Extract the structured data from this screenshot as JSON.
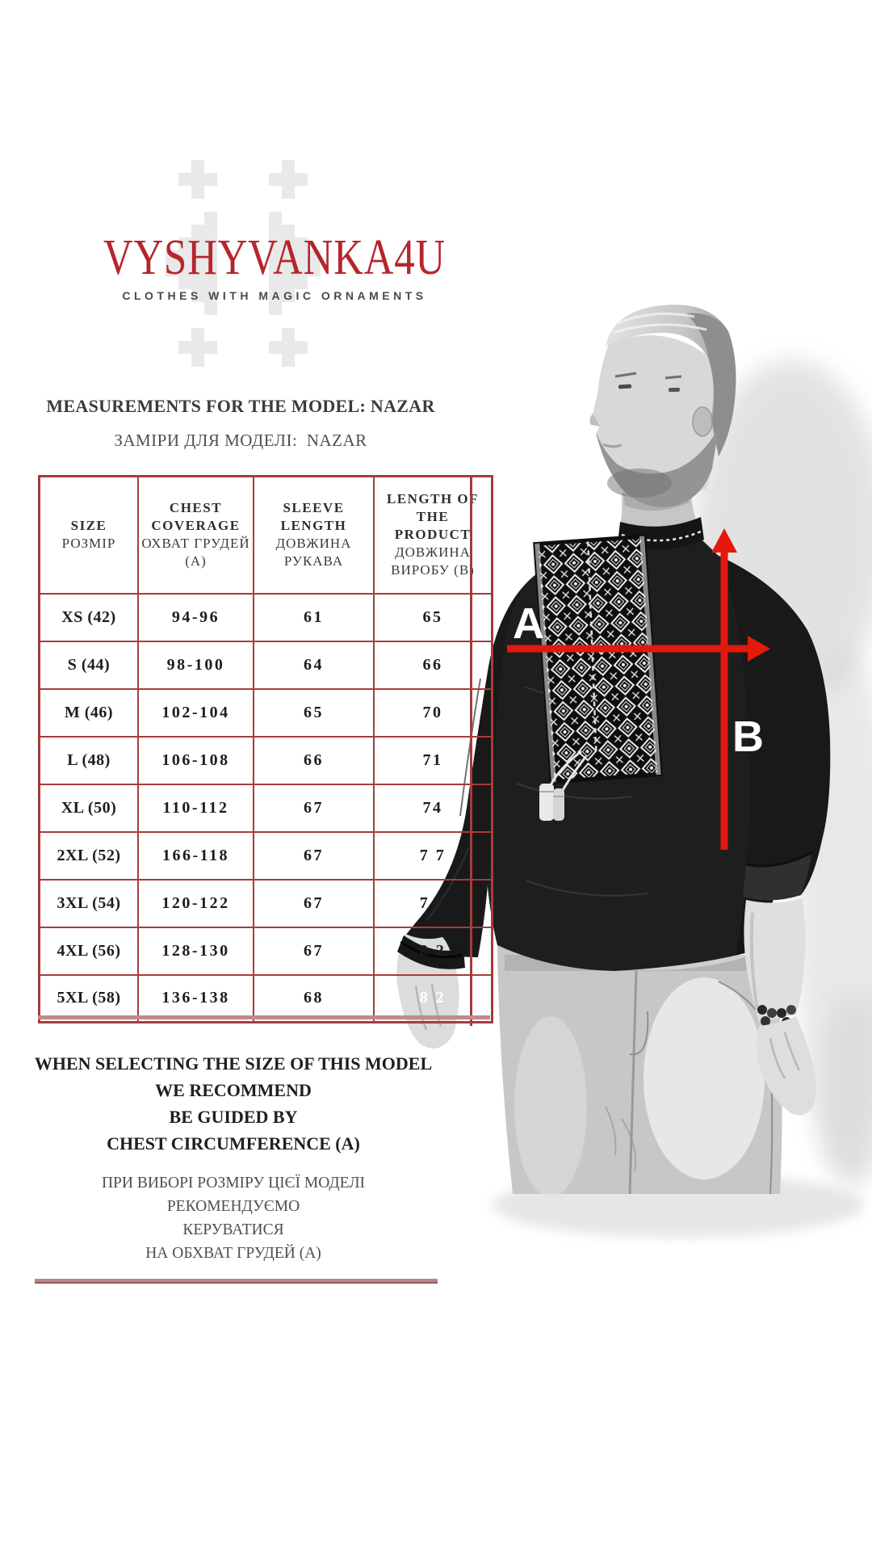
{
  "brand": {
    "logo": "VYSHYVANKA4U",
    "tagline": "CLOTHES WITH MAGIC ORNAMENTS"
  },
  "titles": {
    "en": "MEASUREMENTS FOR THE MODEL: NAZAR",
    "ua": "ЗАМІРИ ДЛЯ МОДЕЛІ:  NAZAR"
  },
  "table": {
    "headers": [
      {
        "en": "SIZE",
        "ua": "РОЗМІР"
      },
      {
        "en": "CHEST COVERAGE",
        "ua": "ОХВАТ ГРУДЕЙ (А)"
      },
      {
        "en": "SLEEVE LENGTH",
        "ua": "ДОВЖИНА РУКАВА"
      },
      {
        "en": "LENGTH OF THE PRODUCT",
        "ua": "ДОВЖИНА ВИРОБУ (В)"
      }
    ],
    "rows": [
      {
        "size": "XS (42)",
        "chest": "94-96",
        "sleeve": "61",
        "length": "65"
      },
      {
        "size": "S (44)",
        "chest": "98-100",
        "sleeve": "64",
        "length": "66"
      },
      {
        "size": "M (46)",
        "chest": "102-104",
        "sleeve": "65",
        "length": "70"
      },
      {
        "size": "L (48)",
        "chest": "106-108",
        "sleeve": "66",
        "length": "71"
      },
      {
        "size": "XL (50)",
        "chest": "110-112",
        "sleeve": "67",
        "length": "74"
      },
      {
        "size": "2XL (52)",
        "chest": "166-118",
        "sleeve": "67",
        "length": "7 7"
      },
      {
        "size": "3XL (54)",
        "chest": "120-122",
        "sleeve": "67",
        "length": "7 9"
      },
      {
        "size": "4XL (56)",
        "chest": "128-130",
        "sleeve": "67",
        "length": "8 2"
      },
      {
        "size": "5XL (58)",
        "chest": "136-138",
        "sleeve": "68",
        "length": "8 2"
      }
    ]
  },
  "recommendation": {
    "en": [
      "WHEN SELECTING THE SIZE OF THIS MODEL",
      "WE RECOMMEND",
      "BE GUIDED BY",
      "CHEST CIRCUMFERENCE (A)"
    ],
    "ua": [
      "ПРИ ВИБОРІ РОЗМІРУ ЦІЄЇ МОДЕЛІ",
      "РЕКОМЕНДУЄМО",
      "КЕРУВАТИСЯ",
      "НА ОБХВАТ ГРУДЕЙ (А)"
    ]
  },
  "figure": {
    "label_a": "A",
    "label_b": "B"
  },
  "colors": {
    "logo_red": "#b5262c",
    "table_border": "#a63c3c",
    "arrow_red": "#e2190b",
    "divider_rose": "#b9878b",
    "ornament_gray": "#e9e9e9"
  }
}
